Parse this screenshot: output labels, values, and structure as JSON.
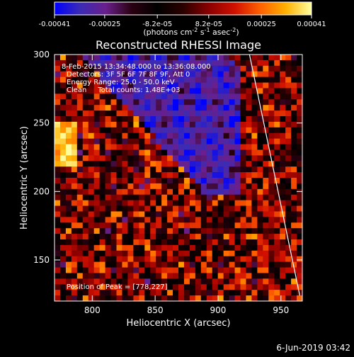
{
  "colorbar": {
    "tick_labels": [
      "-0.00041",
      "-0.00025",
      "-8.2e-05",
      "8.2e-05",
      "0.00025",
      "0.00041"
    ],
    "tick_values": [
      -0.00041,
      -0.00025,
      -8.2e-05,
      8.2e-05,
      0.00025,
      0.00041
    ],
    "range": [
      -0.00041,
      0.00041
    ],
    "units_label": "(photons cm",
    "units_exp1": "-2",
    "units_s": " s",
    "units_exp2": "-1",
    "units_asec": " asec",
    "units_exp3": "-2",
    "units_close": ")",
    "colors": [
      "#0000ff",
      "#3b2bb4",
      "#6a1f8c",
      "#2a0010",
      "#000000",
      "#2a0000",
      "#8a0000",
      "#d01000",
      "#ff6000",
      "#ffb000",
      "#ffffa0"
    ]
  },
  "chart_data": {
    "type": "heatmap",
    "title": "Reconstructed RHESSI Image",
    "xlabel": "Heliocentric X (arcsec)",
    "ylabel": "Heliocentric Y (arcsec)",
    "xlim": [
      770,
      967
    ],
    "ylim": [
      120,
      300
    ],
    "xticks": [
      800,
      850,
      900,
      950
    ],
    "yticks": [
      150,
      200,
      250,
      300
    ],
    "annotations": [
      "8-Feb-2015 13:34:48.000 to 13:36:08.000",
      "Detectors: 3F 5F 6F 7F 8F 9F, Att 0",
      "Energy Range: 25.0 - 50.0 keV",
      "Clean     Total counts: 1.48E+03"
    ],
    "peak_label": "Position of Peak = [778,227]",
    "peak": [
      778,
      227
    ],
    "limb_line": [
      [
        925,
        300
      ],
      [
        965,
        124
      ]
    ]
  },
  "footer": {
    "timestamp": "6-Jun-2019 03:42"
  }
}
